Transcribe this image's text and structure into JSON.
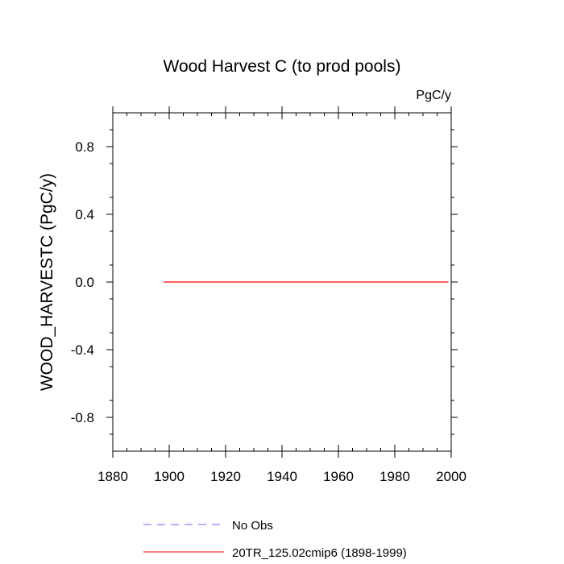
{
  "chart_data": {
    "type": "line",
    "title": "Wood Harvest C (to prod pools)",
    "units": "PgC/y",
    "ylabel": "WOOD_HARVESTC  (PgC/y)",
    "xlabel": "",
    "xlim": [
      1880,
      2000
    ],
    "ylim": [
      -1.0,
      1.0
    ],
    "x_ticks": [
      1880,
      1900,
      1920,
      1940,
      1960,
      1980,
      2000
    ],
    "x_tick_labels": [
      "1880",
      "1900",
      "1920",
      "1940",
      "1960",
      "1980",
      "2000"
    ],
    "y_ticks": [
      -0.8,
      -0.4,
      0.0,
      0.4,
      0.8
    ],
    "y_tick_labels": [
      "-0.8",
      "-0.4",
      "0.0",
      "0.4",
      "0.8"
    ],
    "grid": false,
    "legend_position": "bottom",
    "series": [
      {
        "name": "No Obs",
        "color": "#6666ff",
        "dash": true,
        "x": [],
        "y": []
      },
      {
        "name": "20TR_125.02cmip6 (1898-1999)",
        "color": "#ff0000",
        "dash": false,
        "x": [
          1898,
          1999
        ],
        "y": [
          0.0,
          0.0
        ]
      }
    ]
  }
}
